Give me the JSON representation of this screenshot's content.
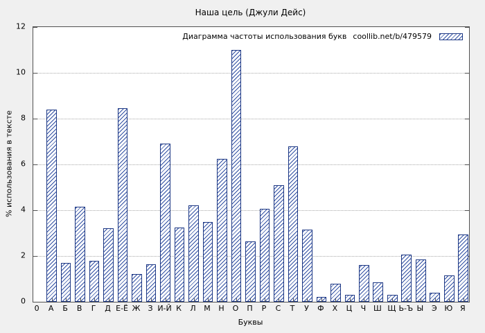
{
  "page": {
    "background_color": "#f0f0f0",
    "plot_background_color": "#ffffff"
  },
  "chart_data": {
    "type": "bar",
    "title": "Наша цель (Джули Дейс)",
    "legend_label": "Диаграмма частоты использования букв",
    "legend_source": "coollib.net/b/479579",
    "legend_position": "top-right",
    "xlabel": "Буквы",
    "ylabel": "% использования в тексте",
    "ylim": [
      0,
      12
    ],
    "xlim": [
      -0.3,
      30.4
    ],
    "yticks": [
      0,
      2,
      4,
      6,
      8,
      10,
      12
    ],
    "origin_tick_label": "0",
    "grid": "dotted horizontal gridlines at y ticks",
    "categories": [
      "А",
      "Б",
      "В",
      "Г",
      "Д",
      "Е-Ё",
      "Ж",
      "З",
      "И-Й",
      "К",
      "Л",
      "М",
      "Н",
      "О",
      "П",
      "Р",
      "С",
      "Т",
      "У",
      "Ф",
      "Х",
      "Ц",
      "Ч",
      "Ш",
      "Щ",
      "Ь-Ъ",
      "Ы",
      "Э",
      "Ю",
      "Я"
    ],
    "values": [
      8.4,
      1.7,
      4.15,
      1.8,
      3.2,
      8.45,
      1.2,
      1.65,
      6.9,
      3.25,
      4.2,
      3.5,
      6.25,
      11.0,
      2.65,
      4.05,
      5.1,
      6.8,
      3.15,
      0.2,
      0.8,
      0.3,
      1.6,
      0.85,
      0.3,
      2.05,
      1.85,
      0.4,
      1.15,
      2.95
    ],
    "bar_style": {
      "fill": "#ffffff",
      "hatch_color": "#2f4ea2",
      "border_color": "#1b3683",
      "hatch_direction": "diagonal-forward"
    }
  }
}
